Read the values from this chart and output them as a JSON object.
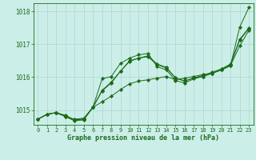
{
  "xlabel": "Graphe pression niveau de la mer (hPa)",
  "background_color": "#cceee8",
  "grid_color": "#aacccc",
  "line_color": "#1a6b1a",
  "marker_color": "#1a6b1a",
  "xlim": [
    -0.5,
    23.5
  ],
  "ylim": [
    1014.55,
    1018.25
  ],
  "yticks": [
    1015,
    1016,
    1017,
    1018
  ],
  "xticks": [
    0,
    1,
    2,
    3,
    4,
    5,
    6,
    7,
    8,
    9,
    10,
    11,
    12,
    13,
    14,
    15,
    16,
    17,
    18,
    19,
    20,
    21,
    22,
    23
  ],
  "series": [
    [
      1014.72,
      1014.87,
      1014.92,
      1014.8,
      1014.72,
      1014.75,
      1015.08,
      1015.25,
      1015.42,
      1015.62,
      1015.8,
      1015.88,
      1015.92,
      1015.97,
      1016.02,
      1015.92,
      1015.97,
      1016.02,
      1016.08,
      1016.12,
      1016.22,
      1016.35,
      1017.52,
      1018.12
    ],
    [
      1014.72,
      1014.87,
      1014.92,
      1014.84,
      1014.7,
      1014.72,
      1015.08,
      1015.58,
      1015.82,
      1016.18,
      1016.48,
      1016.58,
      1016.62,
      1016.38,
      1016.28,
      1015.98,
      1015.88,
      1015.98,
      1016.02,
      1016.12,
      1016.22,
      1016.38,
      1017.12,
      1017.48
    ],
    [
      1014.72,
      1014.87,
      1014.92,
      1014.82,
      1014.7,
      1014.73,
      1015.08,
      1015.6,
      1015.85,
      1016.18,
      1016.5,
      1016.58,
      1016.65,
      1016.4,
      1016.3,
      1015.98,
      1015.88,
      1015.98,
      1016.05,
      1016.15,
      1016.25,
      1016.4,
      1017.15,
      1017.5
    ],
    [
      1014.72,
      1014.87,
      1014.92,
      1014.8,
      1014.67,
      1014.7,
      1015.08,
      1015.95,
      1016.02,
      1016.42,
      1016.58,
      1016.68,
      1016.72,
      1016.32,
      1016.22,
      1015.9,
      1015.82,
      1015.95,
      1016.02,
      1016.12,
      1016.22,
      1016.35,
      1016.95,
      1017.42
    ]
  ]
}
